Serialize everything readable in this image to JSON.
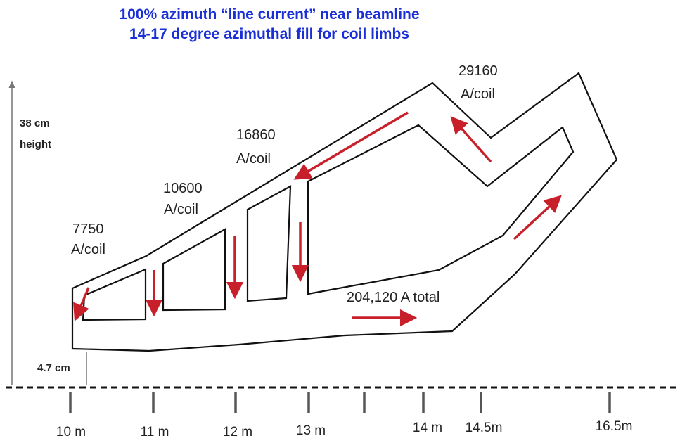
{
  "title": {
    "line1": "100% azimuth “line current” near beamline",
    "line2": "14-17 degree azimuthal fill for coil limbs"
  },
  "coil_labels": [
    {
      "amps": "7750",
      "unit": "A/coil"
    },
    {
      "amps": "10600",
      "unit": "A/coil"
    },
    {
      "amps": "16860",
      "unit": "A/coil"
    },
    {
      "amps": "29160",
      "unit": "A/coil"
    }
  ],
  "total_label": "204,120 A total",
  "height_label": {
    "line1": "38 cm",
    "line2": "height"
  },
  "offset_label": "4.7 cm",
  "axis_ticks": [
    "10 m",
    "11 m",
    "12 m",
    "13 m",
    "14 m",
    "14.5m",
    "16.5m"
  ],
  "colors": {
    "title": "#1a2fd6",
    "arrow": "#c8202a",
    "outline": "#111111",
    "axis_line": "#111111",
    "tick": "#555555",
    "dimension": "#777777"
  }
}
